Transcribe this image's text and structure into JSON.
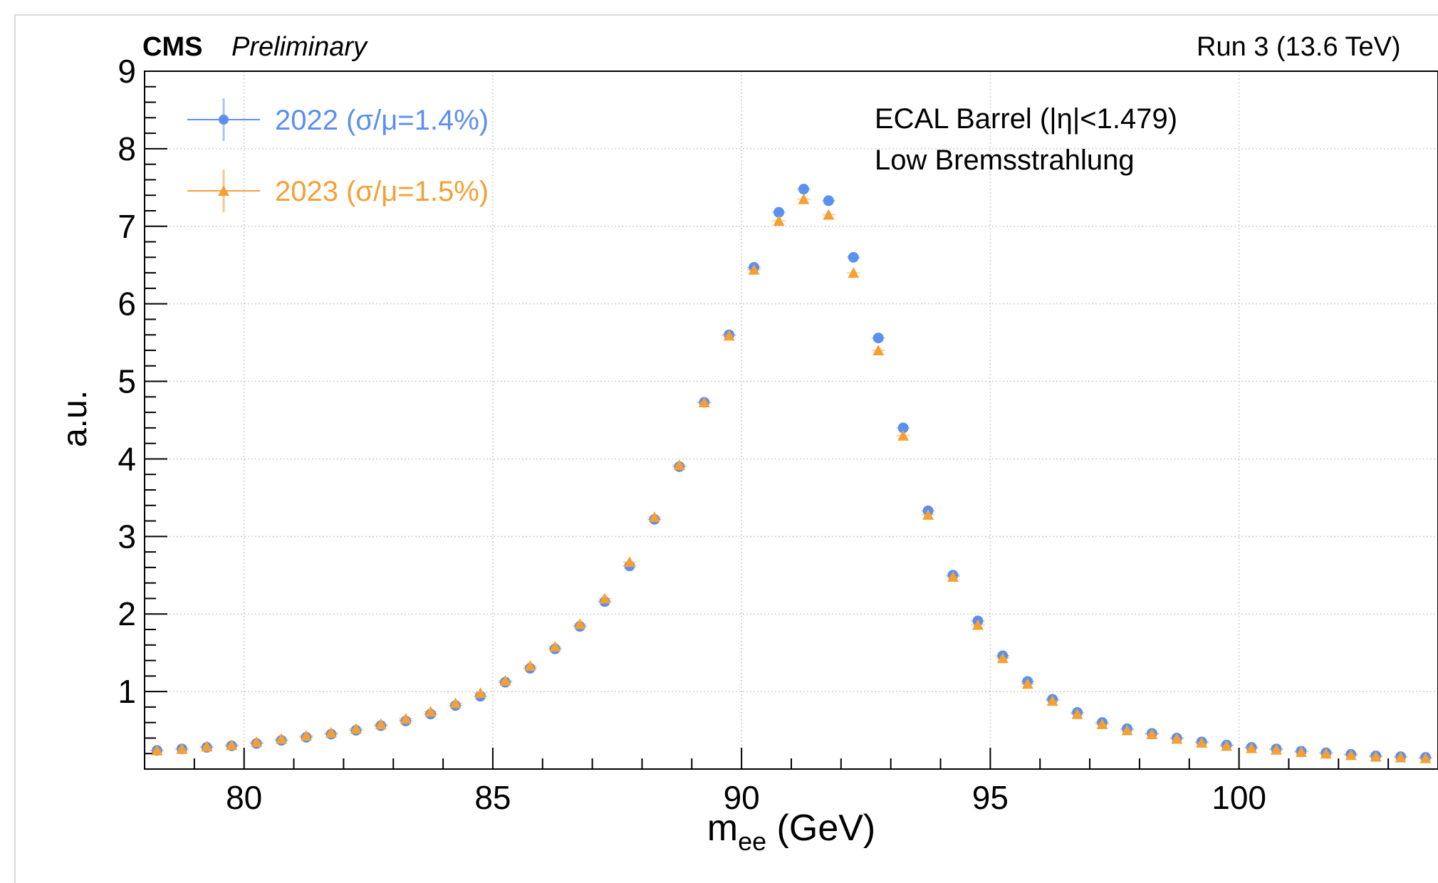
{
  "header": {
    "experiment": "CMS",
    "status": "Preliminary",
    "run_label": "Run 3 (13.6 TeV)"
  },
  "annotations": {
    "line1": "ECAL Barrel (|η|<1.479)",
    "line2": "Low Bremsstrahlung"
  },
  "colors": {
    "series_2022": "#5b8ff0",
    "series_2023": "#f5a033",
    "grid": "#d0d0d0",
    "axis": "#000000"
  },
  "chart_data": {
    "type": "scatter",
    "title": "",
    "xlabel_main": "m",
    "xlabel_sub": "ee",
    "xlabel_unit": " (GeV)",
    "ylabel": "a.u.",
    "xlim": [
      78,
      104
    ],
    "ylim": [
      0,
      9
    ],
    "xticks": [
      80,
      85,
      90,
      95,
      100
    ],
    "yticks": [
      1,
      2,
      3,
      4,
      5,
      6,
      7,
      8,
      9
    ],
    "grid": true,
    "legend_position": "top-left",
    "x": [
      78.25,
      78.75,
      79.25,
      79.75,
      80.25,
      80.75,
      81.25,
      81.75,
      82.25,
      82.75,
      83.25,
      83.75,
      84.25,
      84.75,
      85.25,
      85.75,
      86.25,
      86.75,
      87.25,
      87.75,
      88.25,
      88.75,
      89.25,
      89.75,
      90.25,
      90.75,
      91.25,
      91.75,
      92.25,
      92.75,
      93.25,
      93.75,
      94.25,
      94.75,
      95.25,
      95.75,
      96.25,
      96.75,
      97.25,
      97.75,
      98.25,
      98.75,
      99.25,
      99.75,
      100.25,
      100.75,
      101.25,
      101.75,
      102.25,
      102.75,
      103.25,
      103.75
    ],
    "series": [
      {
        "name": "2022 (σ/μ=1.4%)",
        "marker": "circle",
        "values": [
          0.24,
          0.26,
          0.28,
          0.3,
          0.33,
          0.37,
          0.41,
          0.45,
          0.5,
          0.56,
          0.62,
          0.71,
          0.82,
          0.94,
          1.12,
          1.3,
          1.55,
          1.84,
          2.16,
          2.62,
          3.22,
          3.9,
          4.73,
          5.6,
          6.47,
          7.18,
          7.48,
          7.33,
          6.6,
          5.56,
          4.4,
          3.33,
          2.5,
          1.91,
          1.46,
          1.13,
          0.9,
          0.73,
          0.6,
          0.52,
          0.46,
          0.4,
          0.35,
          0.31,
          0.28,
          0.26,
          0.23,
          0.21,
          0.19,
          0.17,
          0.16,
          0.15
        ]
      },
      {
        "name": "2023 (σ/μ=1.5%)",
        "marker": "triangle",
        "values": [
          0.24,
          0.26,
          0.29,
          0.31,
          0.35,
          0.39,
          0.43,
          0.47,
          0.52,
          0.58,
          0.65,
          0.74,
          0.85,
          0.98,
          1.14,
          1.33,
          1.58,
          1.87,
          2.2,
          2.67,
          3.25,
          3.92,
          4.73,
          5.59,
          6.44,
          7.07,
          7.35,
          7.15,
          6.4,
          5.4,
          4.3,
          3.28,
          2.48,
          1.86,
          1.43,
          1.1,
          0.88,
          0.71,
          0.58,
          0.5,
          0.45,
          0.39,
          0.34,
          0.3,
          0.27,
          0.25,
          0.22,
          0.2,
          0.18,
          0.16,
          0.15,
          0.14
        ]
      }
    ]
  }
}
